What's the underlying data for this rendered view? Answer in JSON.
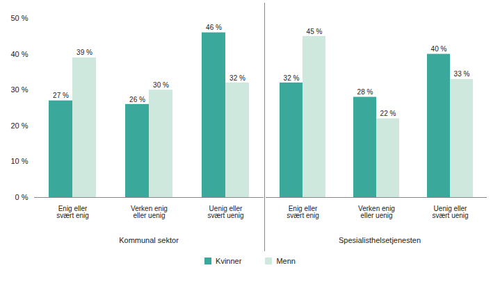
{
  "chart_data": {
    "type": "bar",
    "groups": [
      {
        "name": "Kommunal sektor",
        "categories": [
          "Enig eller svært enig",
          "Verken enig eller uenig",
          "Uenig eller svært uenig"
        ]
      },
      {
        "name": "Spesialisthelsetjenesten",
        "categories": [
          "Enig eller svært enig",
          "Verken enig eller uenig",
          "Uenig eller svært uenig"
        ]
      }
    ],
    "series": [
      {
        "name": "Kvinner",
        "color": "#3aa89b",
        "values": [
          27,
          26,
          46,
          32,
          28,
          40
        ],
        "value_labels": [
          "27 %",
          "26 %",
          "46 %",
          "32 %",
          "28 %",
          "40 %"
        ]
      },
      {
        "name": "Menn",
        "color": "#cfe8dd",
        "values": [
          39,
          30,
          32,
          45,
          22,
          33
        ],
        "value_labels": [
          "39 %",
          "30 %",
          "32 %",
          "45 %",
          "22 %",
          "33 %"
        ]
      }
    ],
    "ylim": [
      0,
      50
    ],
    "yticks": [
      {
        "value": 0,
        "label": "0 %"
      },
      {
        "value": 10,
        "label": "10 %"
      },
      {
        "value": 20,
        "label": "20 %"
      },
      {
        "value": 30,
        "label": "30 %"
      },
      {
        "value": 40,
        "label": "40 %"
      },
      {
        "value": 50,
        "label": "50 %"
      }
    ],
    "grid": false,
    "data_labels": true,
    "legend": "bottom"
  }
}
